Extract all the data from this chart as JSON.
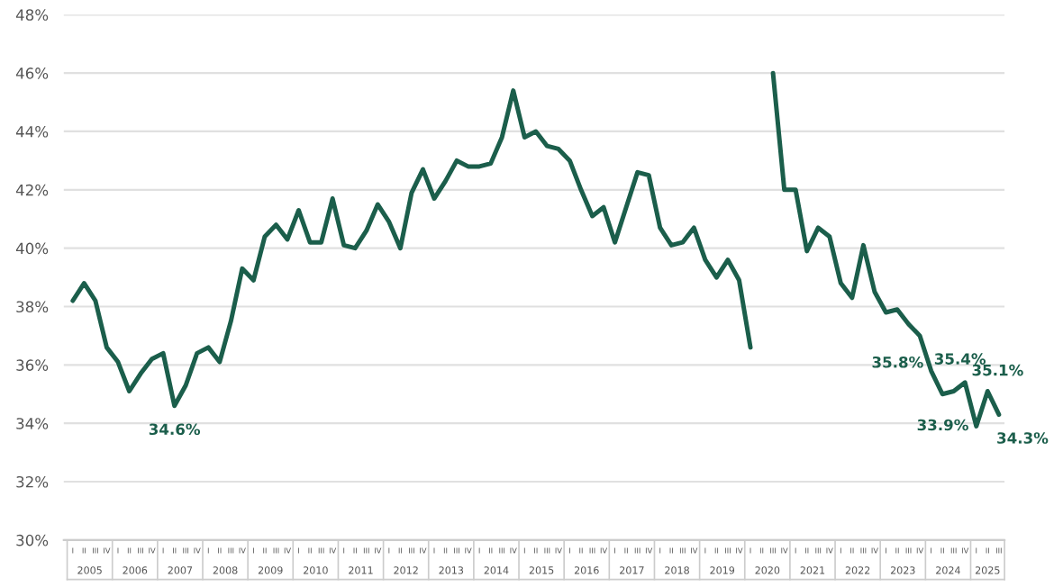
{
  "chart_data": {
    "type": "line",
    "categories": [
      "I",
      "II",
      "III",
      "IV",
      "I",
      "II",
      "III",
      "IV",
      "I",
      "II",
      "III",
      "IV",
      "I",
      "II",
      "III",
      "IV",
      "I",
      "II",
      "III",
      "IV",
      "I",
      "II",
      "III",
      "IV",
      "I",
      "II",
      "III",
      "IV",
      "I",
      "II",
      "III",
      "IV",
      "I",
      "II",
      "III",
      "IV",
      "I",
      "II",
      "III",
      "IV",
      "I",
      "II",
      "III",
      "IV",
      "I",
      "II",
      "III",
      "IV",
      "I",
      "II",
      "III",
      "IV",
      "I",
      "II",
      "III",
      "IV",
      "I",
      "II",
      "III",
      "IV",
      "I",
      "II",
      "III",
      "IV",
      "I",
      "II",
      "III",
      "IV",
      "I",
      "II",
      "III",
      "IV",
      "I",
      "II",
      "III",
      "IV",
      "I",
      "II",
      "III",
      "IV",
      "I",
      "II",
      "III"
    ],
    "annotations": [
      "2005",
      "2006",
      "2007",
      "2008",
      "2009",
      "2010",
      "2011",
      "2012",
      "2013",
      "2014",
      "2015",
      "2016",
      "2017",
      "2018",
      "2019",
      "2020",
      "2021",
      "2022",
      "2023",
      "2024",
      "2025"
    ],
    "series": [
      {
        "color": "#1b5e4b",
        "values": [
          38.2,
          38.8,
          38.2,
          36.6,
          36.1,
          35.1,
          35.7,
          36.2,
          36.4,
          34.6,
          35.3,
          36.4,
          36.6,
          36.1,
          37.5,
          39.3,
          38.9,
          40.4,
          40.8,
          40.3,
          41.3,
          40.2,
          40.2,
          41.7,
          40.1,
          40.0,
          40.6,
          41.5,
          40.9,
          40.0,
          41.9,
          42.7,
          41.7,
          42.3,
          43.0,
          42.8,
          42.8,
          42.9,
          43.8,
          45.4,
          43.8,
          44.0,
          43.5,
          43.4,
          43.0,
          42.0,
          41.1,
          41.4,
          40.2,
          41.4,
          42.6,
          42.5,
          40.7,
          40.1,
          40.2,
          40.7,
          39.6,
          39.0,
          39.6,
          38.9,
          36.6,
          null,
          46.0,
          42.0,
          42.0,
          39.9,
          40.7,
          40.4,
          38.8,
          38.3,
          40.1,
          38.5,
          37.8,
          37.9,
          37.4,
          37.0,
          35.8,
          35.0,
          35.1,
          35.4,
          33.9,
          35.1,
          34.3
        ],
        "value_labels": [
          null,
          null,
          null,
          null,
          null,
          null,
          null,
          null,
          null,
          "34.6%",
          null,
          null,
          null,
          null,
          null,
          null,
          null,
          null,
          null,
          null,
          null,
          null,
          null,
          null,
          null,
          null,
          null,
          null,
          null,
          null,
          null,
          null,
          null,
          null,
          null,
          null,
          null,
          null,
          null,
          null,
          null,
          null,
          null,
          null,
          null,
          null,
          null,
          null,
          null,
          null,
          null,
          null,
          null,
          null,
          null,
          null,
          null,
          null,
          null,
          null,
          null,
          null,
          null,
          null,
          null,
          null,
          null,
          null,
          null,
          null,
          null,
          null,
          null,
          null,
          null,
          null,
          "35.8%",
          null,
          null,
          "35.4%",
          "33.9%",
          "35.1%",
          "34.3%"
        ]
      }
    ],
    "ylim": [
      30,
      48
    ],
    "yticks": [
      {
        "value": 30,
        "label": "30%"
      },
      {
        "value": 32,
        "label": "32%"
      },
      {
        "value": 34,
        "label": "34%"
      },
      {
        "value": 36,
        "label": "36%"
      },
      {
        "value": 38,
        "label": "38%"
      },
      {
        "value": 40,
        "label": "40%"
      },
      {
        "value": 42,
        "label": "42%"
      },
      {
        "value": 44,
        "label": "44%"
      },
      {
        "value": 46,
        "label": "46%"
      },
      {
        "value": 48,
        "label": "48%"
      }
    ],
    "grid": "y",
    "marker": "none",
    "line_style": "solid"
  }
}
